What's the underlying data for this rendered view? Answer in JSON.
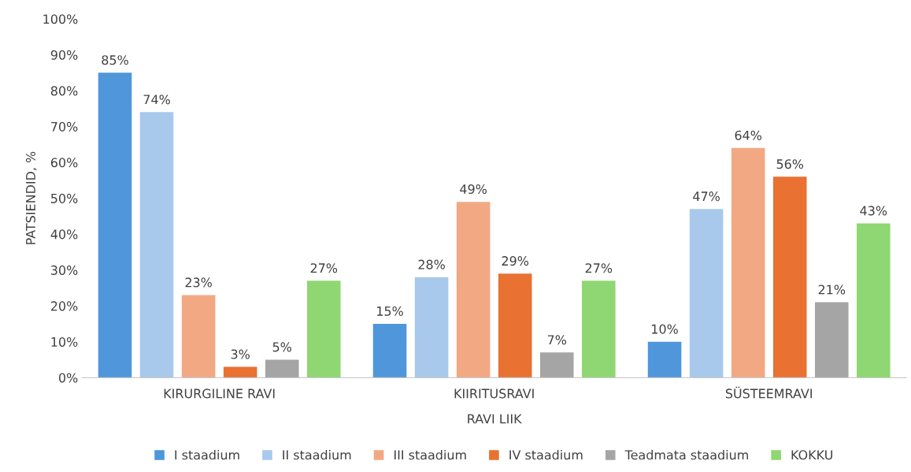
{
  "chart_data": {
    "type": "bar",
    "xlabel": "RAVI LIIK",
    "ylabel": "PATSIENDID, %",
    "categories": [
      "KIRURGILINE RAVI",
      "KIIRITUSRAVI",
      "SÜSTEEMRAVI"
    ],
    "series": [
      {
        "name": "I staadium",
        "color": "#4f96db",
        "values": [
          85,
          15,
          10
        ],
        "value_labels": [
          "85%",
          "15%",
          "10%"
        ]
      },
      {
        "name": "II staadium",
        "color": "#a8c9ec",
        "values": [
          74,
          28,
          47
        ],
        "value_labels": [
          "74%",
          "28%",
          "47%"
        ]
      },
      {
        "name": "III staadium",
        "color": "#f2a983",
        "values": [
          23,
          49,
          64
        ],
        "value_labels": [
          "23%",
          "49%",
          "64%"
        ]
      },
      {
        "name": "IV staadium",
        "color": "#e97132",
        "values": [
          3,
          29,
          56
        ],
        "value_labels": [
          "3%",
          "29%",
          "56%"
        ]
      },
      {
        "name": "Teadmata staadium",
        "color": "#a5a5a5",
        "values": [
          5,
          7,
          21
        ],
        "value_labels": [
          "5%",
          "7%",
          "21%"
        ]
      },
      {
        "name": "KOKKU",
        "color": "#8fd772",
        "values": [
          27,
          27,
          43
        ],
        "value_labels": [
          "27%",
          "27%",
          "43%"
        ]
      }
    ],
    "ylim": [
      0,
      100
    ],
    "yticks": [
      {
        "value": 0,
        "label": "0%"
      },
      {
        "value": 10,
        "label": "10%"
      },
      {
        "value": 20,
        "label": "20%"
      },
      {
        "value": 30,
        "label": "30%"
      },
      {
        "value": 40,
        "label": "40%"
      },
      {
        "value": 50,
        "label": "50%"
      },
      {
        "value": 60,
        "label": "60%"
      },
      {
        "value": 70,
        "label": "70%"
      },
      {
        "value": 80,
        "label": "80%"
      },
      {
        "value": 90,
        "label": "90%"
      },
      {
        "value": 100,
        "label": "100%"
      }
    ],
    "grid": false,
    "legend": "bottom"
  }
}
